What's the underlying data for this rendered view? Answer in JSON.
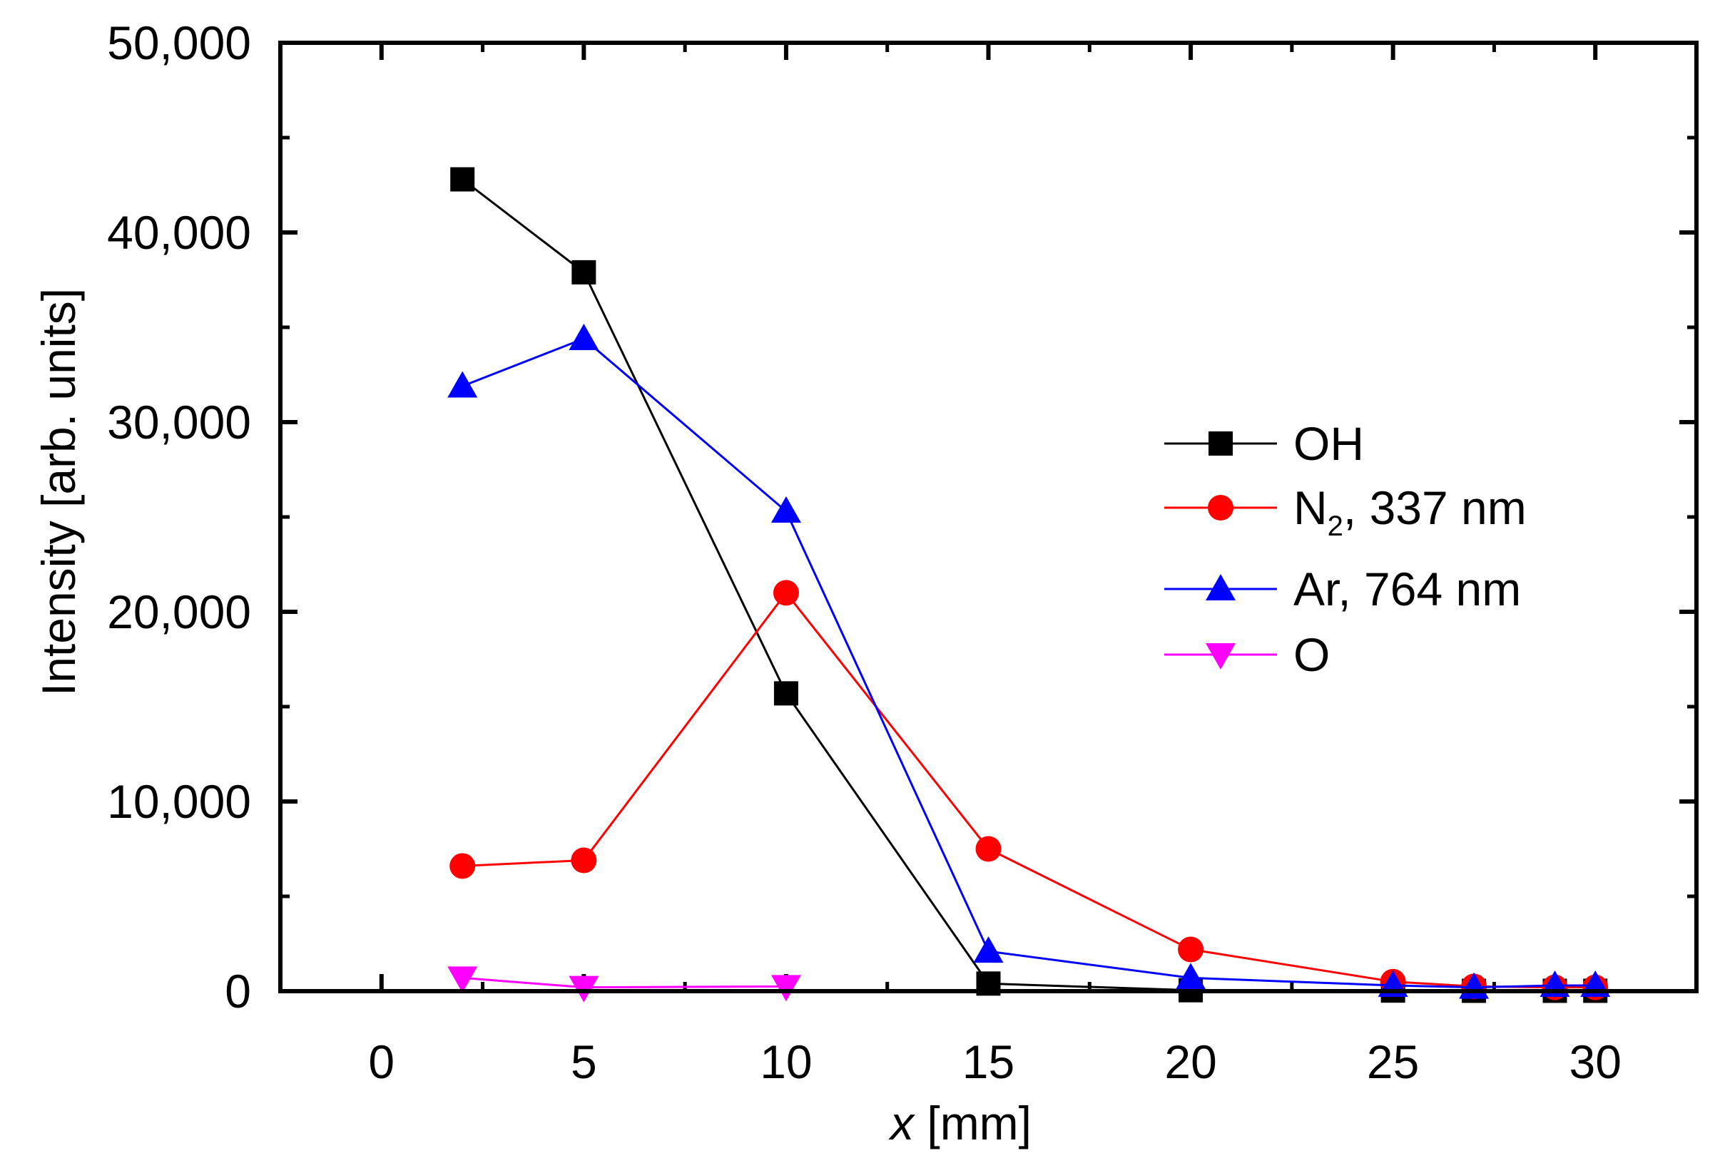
{
  "chart_data": {
    "type": "line",
    "title": "",
    "xlabel_var": "x",
    "xlabel_unit": " [mm]",
    "ylabel": "Intensity [arb. units]",
    "xlim": [
      -2.5,
      32.5
    ],
    "ylim": [
      0,
      50000
    ],
    "x_ticks": [
      0,
      5,
      10,
      15,
      20,
      25,
      30
    ],
    "x_tick_labels": [
      "0",
      "5",
      "10",
      "15",
      "20",
      "25",
      "30"
    ],
    "y_ticks": [
      0,
      10000,
      20000,
      30000,
      40000,
      50000
    ],
    "y_tick_labels": [
      "0",
      "10,000",
      "20,000",
      "30,000",
      "40,000",
      "50,000"
    ],
    "grid": false,
    "legend_position": "right",
    "series": [
      {
        "name": "OH",
        "label_main": "OH",
        "label_sub": "",
        "label_rest": "",
        "color": "#000000",
        "marker": "square",
        "x": [
          2,
          5,
          10,
          15,
          20,
          25,
          27,
          29,
          30
        ],
        "values": [
          42800,
          37900,
          15700,
          400,
          50,
          30,
          20,
          20,
          20
        ]
      },
      {
        "name": "N2, 337 nm",
        "label_main": "N",
        "label_sub": "2",
        "label_rest": ", 337 nm",
        "color": "#ff0000",
        "marker": "circle",
        "x": [
          2,
          5,
          10,
          15,
          20,
          25,
          27,
          29,
          30
        ],
        "values": [
          6600,
          6900,
          21000,
          7500,
          2200,
          500,
          250,
          200,
          200
        ]
      },
      {
        "name": "Ar, 764 nm",
        "label_main": "Ar, 764 nm",
        "label_sub": "",
        "label_rest": "",
        "color": "#0000ff",
        "marker": "triangle-up",
        "x": [
          2,
          5,
          10,
          15,
          20,
          25,
          27,
          29,
          30
        ],
        "values": [
          31900,
          34400,
          25300,
          2100,
          700,
          300,
          200,
          300,
          300
        ]
      },
      {
        "name": "O",
        "label_main": "O",
        "label_sub": "",
        "label_rest": "",
        "color": "#ff00ff",
        "marker": "triangle-down",
        "x": [
          2,
          5,
          10
        ],
        "values": [
          700,
          200,
          250
        ]
      }
    ]
  }
}
